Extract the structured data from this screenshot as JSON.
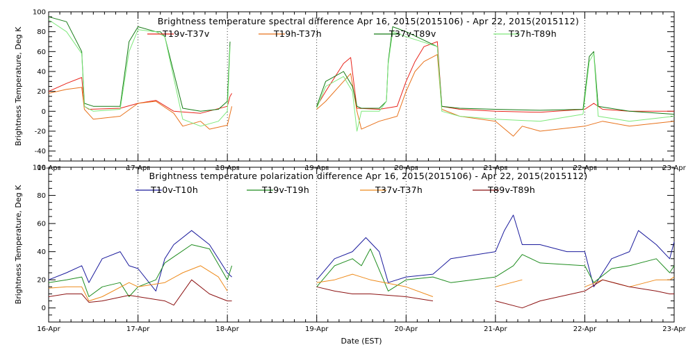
{
  "xlabel": "Date (EST)",
  "chart_data": [
    {
      "type": "line",
      "title": "Brightness temperature spectral difference     Apr 16, 2015(2015106) - Apr 22, 2015(2015112)",
      "ylabel": "Brightness Temperature, Deg K",
      "xlim": [
        0,
        7
      ],
      "ylim": [
        -50,
        100
      ],
      "yticks": [
        -40,
        -20,
        0,
        20,
        40,
        60,
        80,
        100
      ],
      "xticks": [
        0,
        1,
        2,
        3,
        4,
        5,
        6,
        7
      ],
      "xtick_labels": [
        "16-Apr",
        "17-Apr",
        "18-Apr",
        "19-Apr",
        "20-Apr",
        "21-Apr",
        "22-Apr",
        "23-Apr"
      ],
      "grid": "dotted vertical at each day",
      "legend": "top, single row",
      "series": [
        {
          "name": "T19v-T37v",
          "color": "#e8231a",
          "x": [
            0,
            0.2,
            0.37,
            0.4,
            0.45,
            0.8,
            1.0,
            1.2,
            1.4,
            1.7,
            2.0,
            2.03,
            2.05,
            3.0,
            3.1,
            3.3,
            3.38,
            3.45,
            3.7,
            3.9,
            4.0,
            4.1,
            4.2,
            4.35,
            4.4,
            4.6,
            5.0,
            5.5,
            6.0,
            6.1,
            6.2,
            6.5,
            7.0
          ],
          "y": [
            20,
            28,
            34,
            5,
            2,
            3,
            8,
            11,
            0,
            -2,
            5,
            15,
            18,
            5,
            20,
            48,
            54,
            3,
            2,
            5,
            30,
            50,
            65,
            70,
            5,
            2,
            0,
            -1,
            2,
            8,
            2,
            0,
            0
          ]
        },
        {
          "name": "T19h-T37h",
          "color": "#e8711a",
          "x": [
            0,
            0.2,
            0.37,
            0.4,
            0.5,
            0.8,
            1.0,
            1.2,
            1.4,
            1.5,
            1.7,
            1.8,
            2.0,
            2.05,
            3.0,
            3.1,
            3.3,
            3.38,
            3.45,
            3.5,
            3.7,
            3.9,
            4.0,
            4.1,
            4.2,
            4.35,
            4.4,
            4.6,
            5.0,
            5.2,
            5.3,
            5.5,
            6.0,
            6.2,
            6.5,
            7.0
          ],
          "y": [
            18,
            22,
            24,
            2,
            -8,
            -5,
            8,
            10,
            -2,
            -15,
            -10,
            -18,
            -14,
            5,
            2,
            10,
            30,
            38,
            0,
            -18,
            -10,
            -5,
            20,
            40,
            50,
            57,
            2,
            -5,
            -10,
            -25,
            -15,
            -20,
            -15,
            -10,
            -15,
            -10
          ]
        },
        {
          "name": "T37v-T89v",
          "color": "#137a13",
          "x": [
            0,
            0.2,
            0.37,
            0.4,
            0.5,
            0.8,
            0.9,
            1.0,
            1.2,
            1.25,
            1.3,
            1.5,
            1.7,
            1.9,
            2.0,
            2.03,
            3.0,
            3.1,
            3.3,
            3.4,
            3.45,
            3.5,
            3.7,
            3.78,
            3.8,
            3.85,
            4.0,
            4.35,
            4.4,
            4.6,
            5.0,
            5.5,
            5.98,
            6.05,
            6.1,
            6.15,
            6.5,
            7.0
          ],
          "y": [
            95,
            90,
            60,
            8,
            5,
            5,
            70,
            85,
            80,
            80,
            75,
            3,
            0,
            2,
            10,
            70,
            5,
            30,
            40,
            25,
            5,
            3,
            3,
            10,
            50,
            85,
            80,
            65,
            5,
            3,
            2,
            1,
            2,
            55,
            60,
            5,
            0,
            -3
          ]
        },
        {
          "name": "T37h-T89h",
          "color": "#7de87a",
          "x": [
            0,
            0.2,
            0.37,
            0.4,
            0.5,
            0.8,
            0.9,
            1.0,
            1.2,
            1.3,
            1.5,
            1.7,
            1.9,
            2.0,
            2.03,
            3.0,
            3.1,
            3.3,
            3.4,
            3.45,
            3.5,
            3.7,
            3.78,
            3.8,
            3.85,
            4.0,
            4.35,
            4.4,
            4.6,
            5.0,
            5.5,
            5.98,
            6.05,
            6.1,
            6.15,
            6.5,
            7.0
          ],
          "y": [
            92,
            80,
            58,
            5,
            0,
            2,
            60,
            82,
            80,
            75,
            -8,
            -15,
            -10,
            0,
            65,
            3,
            25,
            35,
            20,
            -20,
            0,
            0,
            10,
            48,
            80,
            75,
            65,
            0,
            -5,
            -8,
            -10,
            -3,
            50,
            58,
            -5,
            -10,
            -5
          ]
        }
      ]
    },
    {
      "type": "line",
      "title": "Brightness temperature polarization difference     Apr 16, 2015(2015106) - Apr 22, 2015(2015112)",
      "ylabel": "Brightness Temperature, Deg K",
      "xlabel": "Date (EST)",
      "xlim": [
        0,
        7
      ],
      "ylim": [
        -10,
        100
      ],
      "yticks": [
        0,
        20,
        40,
        60,
        80,
        100
      ],
      "xticks": [
        0,
        1,
        2,
        3,
        4,
        5,
        6,
        7
      ],
      "xtick_labels": [
        "16-Apr",
        "17-Apr",
        "18-Apr",
        "19-Apr",
        "20-Apr",
        "21-Apr",
        "22-Apr",
        "23-Apr"
      ],
      "grid": "dotted vertical at each day",
      "legend": "top, single row",
      "series": [
        {
          "name": "T10v-T10h",
          "color": "#1a1a9c",
          "x": [
            0,
            0.2,
            0.37,
            0.45,
            0.6,
            0.8,
            0.9,
            1.0,
            1.1,
            1.2,
            1.3,
            1.4,
            1.6,
            1.8,
            2.0,
            2.05,
            3.0,
            3.2,
            3.4,
            3.55,
            3.7,
            3.8,
            4.0,
            4.3,
            4.5,
            5.0,
            5.1,
            5.2,
            5.3,
            5.5,
            5.8,
            6.0,
            6.1,
            6.3,
            6.5,
            6.6,
            6.8,
            6.95,
            7.0
          ],
          "y": [
            20,
            25,
            30,
            18,
            35,
            40,
            30,
            28,
            20,
            12,
            35,
            45,
            55,
            45,
            25,
            22,
            20,
            35,
            40,
            50,
            40,
            18,
            22,
            24,
            35,
            40,
            55,
            66,
            45,
            45,
            40,
            40,
            15,
            35,
            40,
            55,
            45,
            35,
            47
          ]
        },
        {
          "name": "T19v-T19h",
          "color": "#1e8c1e",
          "x": [
            0,
            0.2,
            0.37,
            0.45,
            0.6,
            0.8,
            0.9,
            1.0,
            1.2,
            1.3,
            1.6,
            1.8,
            2.0,
            2.05,
            3.0,
            3.2,
            3.4,
            3.5,
            3.6,
            3.8,
            4.0,
            4.3,
            4.5,
            5.0,
            5.2,
            5.3,
            5.5,
            6.0,
            6.1,
            6.3,
            6.5,
            6.8,
            6.95,
            7.0
          ],
          "y": [
            18,
            20,
            22,
            8,
            15,
            18,
            8,
            15,
            20,
            32,
            45,
            42,
            20,
            30,
            15,
            30,
            35,
            30,
            42,
            12,
            20,
            22,
            18,
            22,
            30,
            38,
            32,
            30,
            18,
            28,
            30,
            35,
            25,
            30
          ]
        },
        {
          "name": "T37v-T37h",
          "color": "#ee8a1a",
          "x": [
            0,
            0.2,
            0.37,
            0.45,
            0.6,
            0.9,
            1.0,
            1.3,
            1.5,
            1.7,
            1.9,
            2.0,
            3.0,
            3.2,
            3.4,
            3.6,
            4.0,
            4.3,
            5.0,
            5.3,
            6.0,
            6.2,
            6.5,
            6.8,
            6.95,
            7.0
          ],
          "y": [
            14,
            15,
            15,
            5,
            8,
            18,
            15,
            18,
            25,
            30,
            22,
            12,
            18,
            20,
            24,
            20,
            15,
            8,
            15,
            20,
            15,
            20,
            15,
            20,
            20,
            22
          ]
        },
        {
          "name": "T89v-T89h",
          "color": "#8b1010",
          "x": [
            0,
            0.2,
            0.37,
            0.45,
            0.6,
            0.9,
            1.0,
            1.3,
            1.4,
            1.6,
            1.8,
            2.0,
            2.05,
            3.0,
            3.2,
            3.4,
            3.6,
            4.0,
            4.3,
            5.0,
            5.3,
            5.5,
            6.0,
            6.2,
            6.5,
            6.8,
            6.95,
            7.0
          ],
          "y": [
            8,
            10,
            10,
            4,
            5,
            9,
            8,
            5,
            2,
            20,
            10,
            5,
            5,
            15,
            12,
            10,
            10,
            8,
            5,
            5,
            0,
            5,
            12,
            20,
            15,
            12,
            10,
            10
          ]
        }
      ]
    }
  ]
}
